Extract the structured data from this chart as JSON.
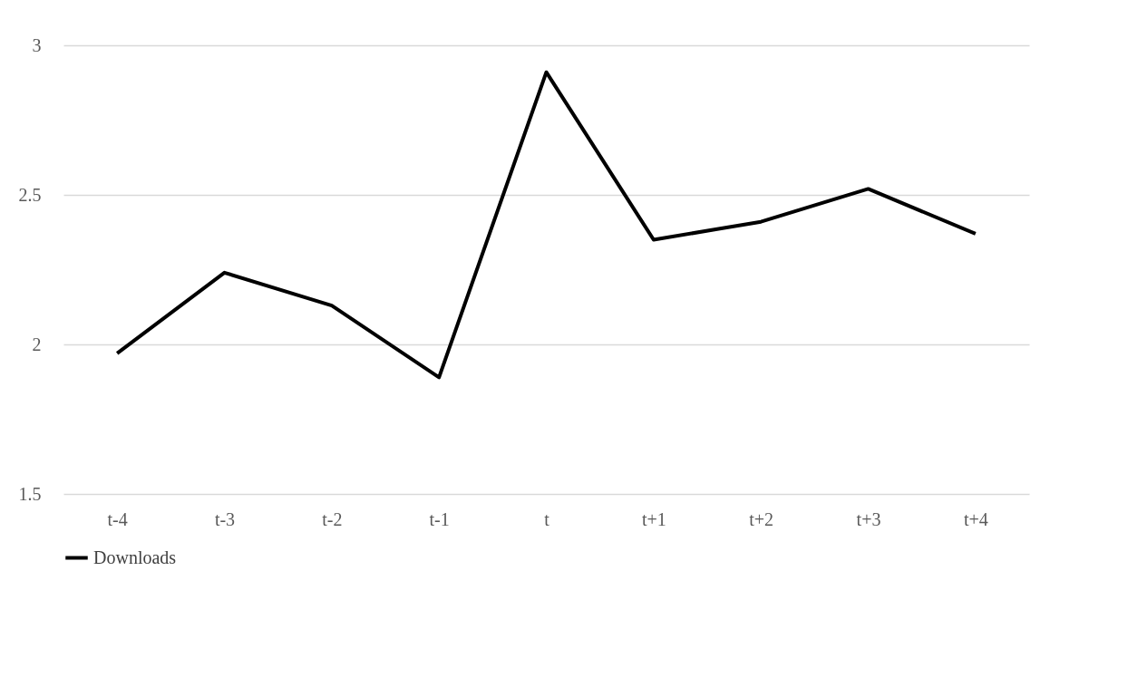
{
  "chart_data": {
    "type": "line",
    "categories": [
      "t-4",
      "t-3",
      "t-2",
      "t-1",
      "t",
      "t+1",
      "t+2",
      "t+3",
      "t+4"
    ],
    "series": [
      {
        "name": "Downloads",
        "color": "#000000",
        "values": [
          1.97,
          2.24,
          2.13,
          1.89,
          2.91,
          2.35,
          2.41,
          2.52,
          2.37
        ]
      }
    ],
    "ylim": [
      1.5,
      3
    ],
    "yticks": [
      1.5,
      2,
      2.5,
      3
    ],
    "grid": "y",
    "legend": "bottom",
    "line_style": "solid"
  }
}
